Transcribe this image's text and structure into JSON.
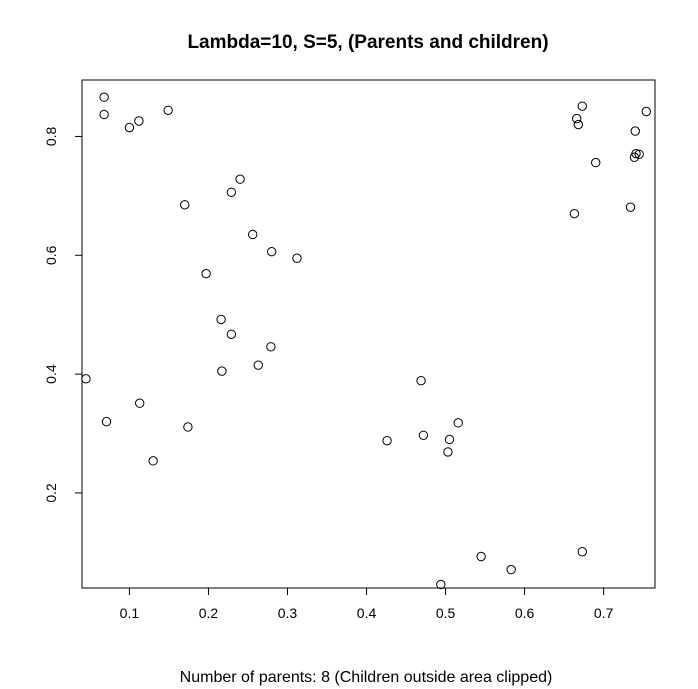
{
  "chart_data": {
    "type": "scatter",
    "title": "Lambda=10, S=5, (Parents and children)",
    "xlabel": "Number of parents:  8  (Children outside area clipped)",
    "ylabel": "",
    "xlim": [
      0.04,
      0.765
    ],
    "ylim": [
      0.04,
      0.895
    ],
    "x_ticks": [
      0.1,
      0.2,
      0.3,
      0.4,
      0.5,
      0.6,
      0.7
    ],
    "x_tick_labels": [
      "0.1",
      "0.2",
      "0.3",
      "0.4",
      "0.5",
      "0.6",
      "0.7"
    ],
    "y_ticks": [
      0.2,
      0.4,
      0.6,
      0.8
    ],
    "y_tick_labels": [
      "0.2",
      "0.4",
      "0.6",
      "0.8"
    ],
    "grid": false,
    "marker": "open-circle",
    "points": [
      {
        "x": 0.068,
        "y": 0.866
      },
      {
        "x": 0.068,
        "y": 0.837
      },
      {
        "x": 0.1,
        "y": 0.815
      },
      {
        "x": 0.112,
        "y": 0.826
      },
      {
        "x": 0.149,
        "y": 0.844
      },
      {
        "x": 0.17,
        "y": 0.685
      },
      {
        "x": 0.229,
        "y": 0.706
      },
      {
        "x": 0.24,
        "y": 0.728
      },
      {
        "x": 0.256,
        "y": 0.635
      },
      {
        "x": 0.28,
        "y": 0.606
      },
      {
        "x": 0.312,
        "y": 0.595
      },
      {
        "x": 0.197,
        "y": 0.569
      },
      {
        "x": 0.216,
        "y": 0.492
      },
      {
        "x": 0.229,
        "y": 0.467
      },
      {
        "x": 0.279,
        "y": 0.446
      },
      {
        "x": 0.263,
        "y": 0.415
      },
      {
        "x": 0.217,
        "y": 0.405
      },
      {
        "x": 0.045,
        "y": 0.392
      },
      {
        "x": 0.113,
        "y": 0.351
      },
      {
        "x": 0.071,
        "y": 0.32
      },
      {
        "x": 0.174,
        "y": 0.311
      },
      {
        "x": 0.13,
        "y": 0.254
      },
      {
        "x": 0.426,
        "y": 0.288
      },
      {
        "x": 0.469,
        "y": 0.389
      },
      {
        "x": 0.472,
        "y": 0.297
      },
      {
        "x": 0.505,
        "y": 0.29
      },
      {
        "x": 0.516,
        "y": 0.318
      },
      {
        "x": 0.503,
        "y": 0.269
      },
      {
        "x": 0.545,
        "y": 0.093
      },
      {
        "x": 0.583,
        "y": 0.071
      },
      {
        "x": 0.494,
        "y": 0.046
      },
      {
        "x": 0.673,
        "y": 0.101
      },
      {
        "x": 0.673,
        "y": 0.851
      },
      {
        "x": 0.666,
        "y": 0.83
      },
      {
        "x": 0.668,
        "y": 0.82
      },
      {
        "x": 0.754,
        "y": 0.842
      },
      {
        "x": 0.74,
        "y": 0.809
      },
      {
        "x": 0.69,
        "y": 0.756
      },
      {
        "x": 0.741,
        "y": 0.771
      },
      {
        "x": 0.745,
        "y": 0.77
      },
      {
        "x": 0.739,
        "y": 0.765
      },
      {
        "x": 0.663,
        "y": 0.67
      },
      {
        "x": 0.734,
        "y": 0.681
      }
    ]
  }
}
